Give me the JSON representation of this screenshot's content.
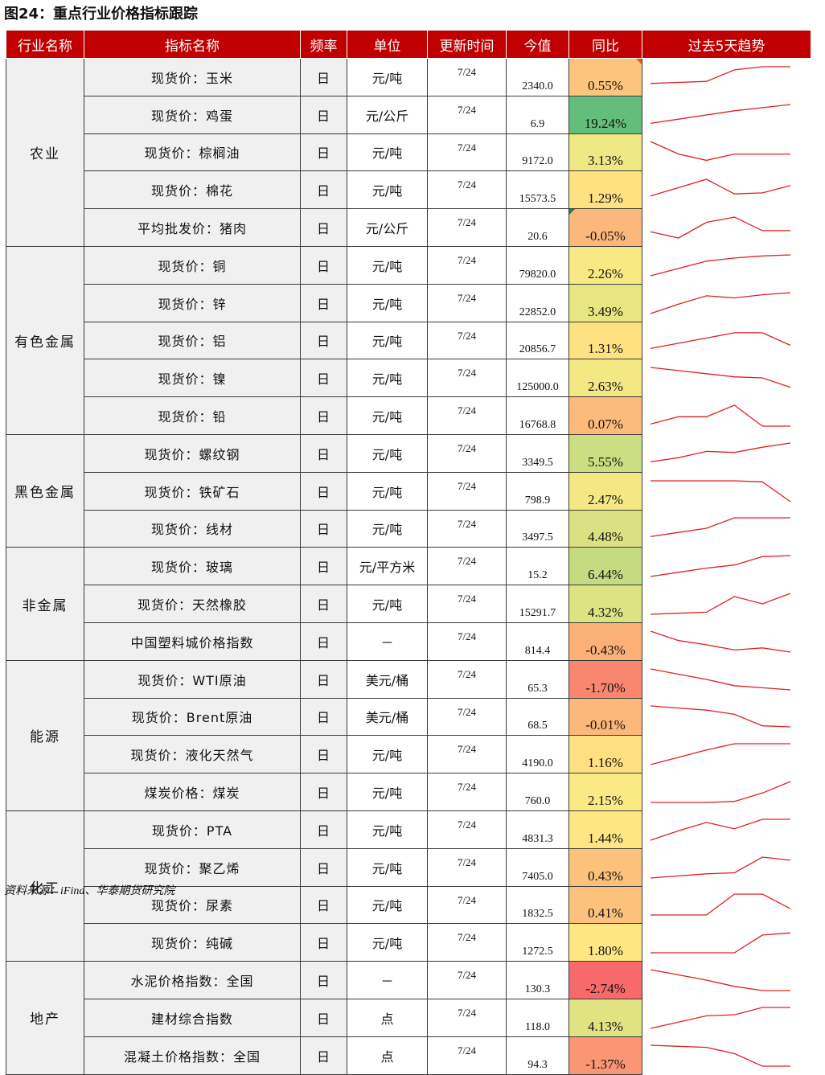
{
  "title": "图24：重点行业价格指标跟踪",
  "source": "资料来源：iFind、华泰期货研究院",
  "headers": [
    "行业名称",
    "指标名称",
    "频率",
    "单位",
    "更新时间",
    "今值",
    "同比",
    "过去5天趋势"
  ],
  "colors": {
    "header_bg": "#c00000",
    "spark": "#e02020",
    "neg_strong": "#f8696b",
    "pos_strong": "#63be7b",
    "mid": "#ffeb84"
  },
  "groups": [
    {
      "name": "农业",
      "rows": [
        {
          "indicator": "现货价：玉米",
          "freq": "日",
          "unit": "元/吨",
          "date": "7/24",
          "value": "2340.0",
          "yoy": "0.55%",
          "yoy_num": 0.55,
          "color": "#fcc47c",
          "flag": "r",
          "trend": [
            0.2,
            0.25,
            0.3,
            0.85,
            1.0,
            1.0
          ]
        },
        {
          "indicator": "现货价：鸡蛋",
          "freq": "日",
          "unit": "元/公斤",
          "date": "7/24",
          "value": "6.9",
          "yoy": "19.24%",
          "yoy_num": 19.24,
          "color": "#63be7b",
          "trend": [
            0.1,
            0.3,
            0.5,
            0.7,
            0.85,
            1.0
          ]
        },
        {
          "indicator": "现货价：棕榈油",
          "freq": "日",
          "unit": "元/吨",
          "date": "7/24",
          "value": "9172.0",
          "yoy": "3.13%",
          "yoy_num": 3.13,
          "color": "#eee783",
          "trend": [
            1.0,
            0.4,
            0.1,
            0.4,
            0.4,
            0.4
          ]
        },
        {
          "indicator": "现货价：棉花",
          "freq": "日",
          "unit": "元/吨",
          "date": "7/24",
          "value": "15573.5",
          "yoy": "1.29%",
          "yoy_num": 1.29,
          "color": "#fee282",
          "trend": [
            0.2,
            0.6,
            1.0,
            0.3,
            0.35,
            0.7
          ]
        },
        {
          "indicator": "平均批发价：猪肉",
          "freq": "日",
          "unit": "元/公斤",
          "date": "7/24",
          "value": "20.6",
          "yoy": "-0.05%",
          "yoy_num": -0.05,
          "color": "#fcb77a",
          "flag": "g",
          "trend": [
            0.3,
            0.0,
            0.75,
            1.0,
            0.35,
            0.35
          ]
        }
      ]
    },
    {
      "name": "有色金属",
      "rows": [
        {
          "indicator": "现货价：铜",
          "freq": "日",
          "unit": "元/吨",
          "date": "7/24",
          "value": "79820.0",
          "yoy": "2.26%",
          "yoy_num": 2.26,
          "color": "#f9e984",
          "trend": [
            0.0,
            0.35,
            0.7,
            0.85,
            0.95,
            1.0
          ]
        },
        {
          "indicator": "现货价：锌",
          "freq": "日",
          "unit": "元/吨",
          "date": "7/24",
          "value": "22852.0",
          "yoy": "3.49%",
          "yoy_num": 3.49,
          "color": "#e8e583",
          "trend": [
            0.0,
            0.45,
            0.85,
            0.75,
            0.9,
            1.0
          ]
        },
        {
          "indicator": "现货价：铝",
          "freq": "日",
          "unit": "元/吨",
          "date": "7/24",
          "value": "20856.7",
          "yoy": "1.31%",
          "yoy_num": 1.31,
          "color": "#fee282",
          "trend": [
            0.1,
            0.35,
            0.6,
            0.85,
            0.85,
            0.25
          ]
        },
        {
          "indicator": "现货价：镍",
          "freq": "日",
          "unit": "元/吨",
          "date": "7/24",
          "value": "125000.0",
          "yoy": "2.63%",
          "yoy_num": 2.63,
          "color": "#f4e884",
          "trend": [
            1.0,
            0.85,
            0.7,
            0.55,
            0.5,
            0.05
          ]
        },
        {
          "indicator": "现货价：铅",
          "freq": "日",
          "unit": "元/吨",
          "date": "7/24",
          "value": "16768.8",
          "yoy": "0.07%",
          "yoy_num": 0.07,
          "color": "#fcbb7b",
          "trend": [
            0.1,
            0.45,
            0.45,
            1.0,
            0.0,
            0.0
          ]
        }
      ]
    },
    {
      "name": "黑色金属",
      "rows": [
        {
          "indicator": "现货价：螺纹钢",
          "freq": "日",
          "unit": "元/吨",
          "date": "7/24",
          "value": "3349.5",
          "yoy": "5.55%",
          "yoy_num": 5.55,
          "color": "#cdde82",
          "trend": [
            0.1,
            0.3,
            0.6,
            0.55,
            0.8,
            1.0
          ]
        },
        {
          "indicator": "现货价：铁矿石",
          "freq": "日",
          "unit": "元/吨",
          "date": "7/24",
          "value": "798.9",
          "yoy": "2.47%",
          "yoy_num": 2.47,
          "color": "#f5e884",
          "trend": [
            1.0,
            1.0,
            1.0,
            1.0,
            0.95,
            0.0
          ]
        },
        {
          "indicator": "现货价：线材",
          "freq": "日",
          "unit": "元/吨",
          "date": "7/24",
          "value": "3497.5",
          "yoy": "4.48%",
          "yoy_num": 4.48,
          "color": "#dbe182",
          "trend": [
            0.1,
            0.3,
            0.5,
            1.0,
            1.0,
            1.0
          ]
        }
      ]
    },
    {
      "name": "非金属",
      "rows": [
        {
          "indicator": "现货价：玻璃",
          "freq": "日",
          "unit": "元/平方米",
          "date": "7/24",
          "value": "15.2",
          "yoy": "6.44%",
          "yoy_num": 6.44,
          "color": "#c4db81",
          "trend": [
            0.0,
            0.2,
            0.4,
            0.55,
            0.95,
            1.0
          ]
        },
        {
          "indicator": "现货价：天然橡胶",
          "freq": "日",
          "unit": "元/吨",
          "date": "7/24",
          "value": "15291.7",
          "yoy": "4.32%",
          "yoy_num": 4.32,
          "color": "#dde282",
          "trend": [
            0.0,
            0.05,
            0.1,
            0.85,
            0.5,
            1.0
          ]
        },
        {
          "indicator": "中国塑料城价格指数",
          "freq": "日",
          "unit": "－",
          "date": "7/24",
          "value": "814.4",
          "yoy": "-0.43%",
          "yoy_num": -0.43,
          "color": "#fcb078",
          "trend": [
            1.0,
            0.55,
            0.35,
            0.1,
            0.2,
            0.0
          ]
        }
      ]
    },
    {
      "name": "能源",
      "rows": [
        {
          "indicator": "现货价：WTI原油",
          "freq": "日",
          "unit": "美元/桶",
          "date": "7/24",
          "value": "65.3",
          "yoy": "-1.70%",
          "yoy_num": -1.7,
          "color": "#f98770",
          "trend": [
            1.0,
            0.75,
            0.5,
            0.2,
            0.1,
            0.0
          ]
        },
        {
          "indicator": "现货价：Brent原油",
          "freq": "日",
          "unit": "美元/桶",
          "date": "7/24",
          "value": "68.5",
          "yoy": "-0.01%",
          "yoy_num": -0.01,
          "color": "#fcb77a",
          "trend": [
            1.0,
            0.9,
            0.8,
            0.6,
            0.05,
            0.0
          ]
        },
        {
          "indicator": "现货价：液化天然气",
          "freq": "日",
          "unit": "元/吨",
          "date": "7/24",
          "value": "4190.0",
          "yoy": "1.16%",
          "yoy_num": 1.16,
          "color": "#fee082",
          "trend": [
            0.0,
            0.35,
            0.7,
            1.0,
            1.0,
            1.0
          ]
        },
        {
          "indicator": "煤炭价格：煤炭",
          "freq": "日",
          "unit": "元/吨",
          "date": "7/24",
          "value": "760.0",
          "yoy": "2.15%",
          "yoy_num": 2.15,
          "color": "#fae984",
          "trend": [
            0.0,
            0.0,
            0.0,
            0.05,
            0.45,
            1.0
          ]
        }
      ]
    },
    {
      "name": "化工",
      "rows": [
        {
          "indicator": "现货价：PTA",
          "freq": "日",
          "unit": "元/吨",
          "date": "7/24",
          "value": "4831.3",
          "yoy": "1.44%",
          "yoy_num": 1.44,
          "color": "#fee783",
          "trend": [
            0.0,
            0.45,
            0.85,
            0.55,
            1.0,
            1.0
          ]
        },
        {
          "indicator": "现货价：聚乙烯",
          "freq": "日",
          "unit": "元/吨",
          "date": "7/24",
          "value": "7405.0",
          "yoy": "0.43%",
          "yoy_num": 0.43,
          "color": "#fcc17b",
          "trend": [
            0.0,
            0.1,
            0.2,
            0.25,
            1.0,
            0.85
          ]
        },
        {
          "indicator": "现货价：尿素",
          "freq": "日",
          "unit": "元/吨",
          "date": "7/24",
          "value": "1832.5",
          "yoy": "0.41%",
          "yoy_num": 0.41,
          "color": "#fcc17b",
          "trend": [
            0.0,
            0.0,
            0.0,
            1.0,
            1.0,
            0.3
          ]
        },
        {
          "indicator": "现货价：纯碱",
          "freq": "日",
          "unit": "元/吨",
          "date": "7/24",
          "value": "1272.5",
          "yoy": "1.80%",
          "yoy_num": 1.8,
          "color": "#fee783",
          "trend": [
            0.0,
            0.0,
            0.0,
            0.0,
            0.85,
            0.95
          ]
        }
      ]
    },
    {
      "name": "地产",
      "rows": [
        {
          "indicator": "水泥价格指数：全国",
          "freq": "日",
          "unit": "－",
          "date": "7/24",
          "value": "130.3",
          "yoy": "-2.74%",
          "yoy_num": -2.74,
          "color": "#f8696b",
          "trend": [
            1.0,
            0.75,
            0.5,
            0.2,
            0.0,
            0.0
          ]
        },
        {
          "indicator": "建材综合指数",
          "freq": "日",
          "unit": "点",
          "date": "7/24",
          "value": "118.0",
          "yoy": "4.13%",
          "yoy_num": 4.13,
          "color": "#e0e382",
          "trend": [
            0.0,
            0.3,
            0.6,
            0.65,
            1.0,
            1.0
          ]
        },
        {
          "indicator": "混凝土价格指数：全国",
          "freq": "日",
          "unit": "点",
          "date": "7/24",
          "value": "94.3",
          "yoy": "-1.37%",
          "yoy_num": -1.37,
          "color": "#fa9673",
          "trend": [
            1.0,
            0.95,
            0.9,
            0.6,
            0.0,
            0.0
          ]
        }
      ]
    }
  ]
}
